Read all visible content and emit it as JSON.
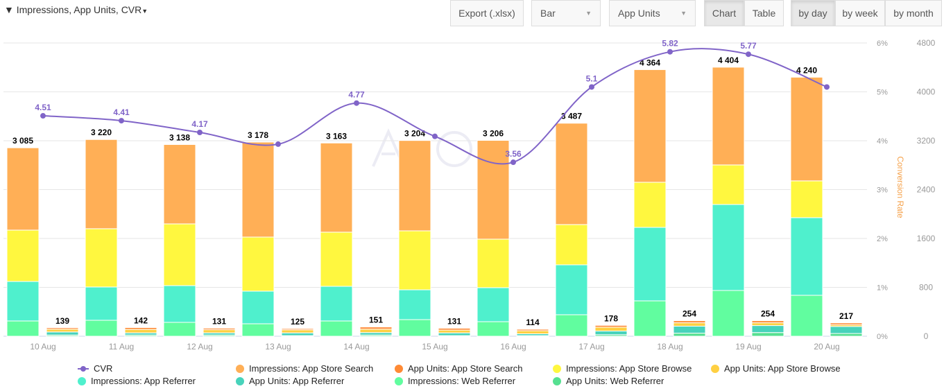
{
  "toolbar": {
    "filter_label": "Impressions, App Units, CVR",
    "export_label": "Export (.xlsx)",
    "chart_type_select": "Bar",
    "metric_select": "App Units",
    "view_chart": "Chart",
    "view_table": "Table",
    "by_day": "by day",
    "by_week": "by week",
    "by_month": "by month",
    "active_view": "Chart",
    "active_period": "by day"
  },
  "chart_data": {
    "type": "bar",
    "stacked": true,
    "categories": [
      "10 Aug",
      "11 Aug",
      "12 Aug",
      "13 Aug",
      "14 Aug",
      "15 Aug",
      "16 Aug",
      "17 Aug",
      "18 Aug",
      "19 Aug",
      "20 Aug"
    ],
    "left_axis": {
      "ylim": [
        0,
        4800
      ],
      "ticks": [
        "0",
        "800",
        "1600",
        "2400",
        "3200",
        "4000",
        "4800"
      ]
    },
    "right_axis": {
      "label": "Conversion Rate",
      "ylim": [
        0,
        6
      ],
      "ticks": [
        "0%",
        "1%",
        "2%",
        "3%",
        "4%",
        "5%",
        "6%"
      ]
    },
    "grid": true,
    "legend_placement": "bottom",
    "impressions": {
      "totals": [
        "3 085",
        "3 220",
        "3 138",
        "3 178",
        "3 163",
        "3 204",
        "3 206",
        "3 487",
        "4 364",
        "4 404",
        "4 240"
      ],
      "series": [
        {
          "name": "Impressions: Web Referrer",
          "color": "#61fd9f",
          "values": [
            250,
            261,
            227,
            204,
            250,
            272,
            238,
            352,
            579,
            749,
            670
          ]
        },
        {
          "name": "Impressions: App Referrer",
          "color": "#4ff0cd",
          "values": [
            647,
            545,
            602,
            534,
            567,
            488,
            557,
            817,
            1203,
            1408,
            1271
          ]
        },
        {
          "name": "Impressions: App Store Browse",
          "color": "#fff73f",
          "values": [
            840,
            954,
            1010,
            885,
            886,
            965,
            794,
            659,
            738,
            647,
            602
          ]
        },
        {
          "name": "Impressions: App Store Search",
          "color": "#ffaf56",
          "values": [
            1348,
            1460,
            1299,
            1555,
            1460,
            1479,
            1617,
            1659,
            1844,
            1600,
            1697
          ]
        }
      ]
    },
    "app_units": {
      "totals": [
        "139",
        "142",
        "131",
        "125",
        "151",
        "131",
        "114",
        "178",
        "254",
        "254",
        "217"
      ],
      "series": [
        {
          "name": "App Units: Web Referrer",
          "color": "#56e091",
          "values": [
            20,
            20,
            20,
            10,
            20,
            10,
            10,
            25,
            50,
            60,
            45
          ]
        },
        {
          "name": "App Units: App Referrer",
          "color": "#47d3bb",
          "values": [
            50,
            35,
            35,
            45,
            40,
            45,
            30,
            60,
            115,
            115,
            115
          ]
        },
        {
          "name": "App Units: App Store Browse",
          "color": "#ffd042",
          "values": [
            45,
            57,
            52,
            50,
            56,
            46,
            50,
            63,
            55,
            45,
            27
          ]
        },
        {
          "name": "App Units: App Store Search",
          "color": "#ff8a35",
          "values": [
            24,
            30,
            24,
            20,
            35,
            30,
            24,
            30,
            34,
            34,
            30
          ]
        }
      ]
    },
    "cvr": {
      "name": "CVR",
      "color": "#8064c8",
      "values": [
        4.51,
        4.41,
        4.17,
        3.93,
        4.77,
        4.09,
        3.56,
        5.1,
        5.82,
        5.77,
        5.1
      ],
      "labels": [
        "4.51",
        "4.41",
        "4.17",
        "",
        "4.77",
        "",
        "3.56",
        "5.1",
        "5.82",
        "5.77",
        ""
      ]
    },
    "legend": [
      {
        "name": "CVR",
        "color": "#8064c8",
        "marker": "line"
      },
      {
        "name": "Impressions: App Store Search",
        "color": "#ffaf56"
      },
      {
        "name": "App Units: App Store Search",
        "color": "#ff8a35"
      },
      {
        "name": "Impressions: App Store Browse",
        "color": "#fff73f"
      },
      {
        "name": "App Units: App Store Browse",
        "color": "#ffd042"
      },
      {
        "name": "Impressions: App Referrer",
        "color": "#4ff0cd"
      },
      {
        "name": "App Units: App Referrer",
        "color": "#47d3bb"
      },
      {
        "name": "Impressions: Web Referrer",
        "color": "#61fd9f"
      },
      {
        "name": "App Units: Web Referrer",
        "color": "#56e091"
      }
    ]
  }
}
